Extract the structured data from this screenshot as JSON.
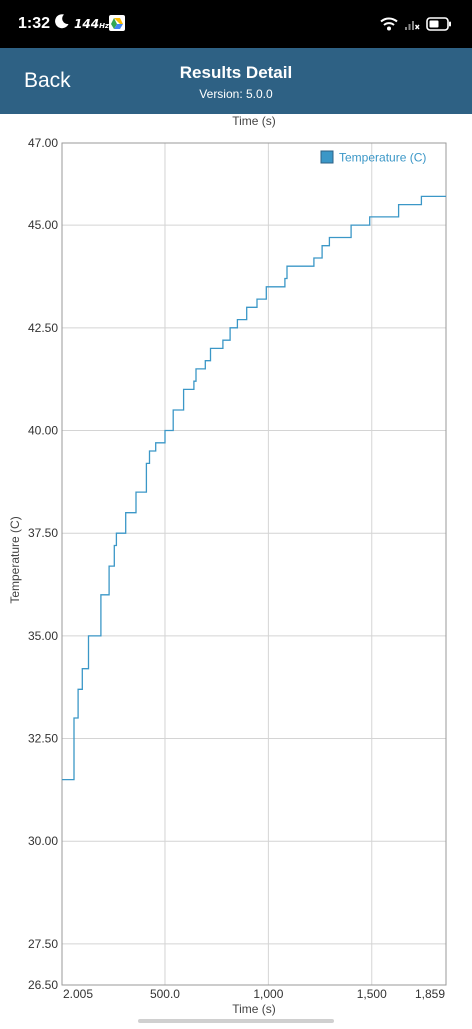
{
  "status_bar": {
    "time": "1:32",
    "refresh_rate": "144",
    "refresh_unit": "Hz",
    "icons": [
      "moon-icon",
      "google-drive-icon",
      "wifi-icon",
      "signal-icon",
      "battery-icon"
    ]
  },
  "header": {
    "back_label": "Back",
    "title": "Results Detail",
    "subtitle": "Version: 5.0.0",
    "background": "#2e6184"
  },
  "chart_data": {
    "type": "line",
    "title": "",
    "xlabel": "Time (s)",
    "ylabel": "Temperature (C)",
    "xlim": [
      2.005,
      1859
    ],
    "ylim": [
      26.5,
      47.0
    ],
    "grid": true,
    "legend_position": "top-right",
    "x_tick_labels": [
      {
        "value": 2.005,
        "label": "2.005"
      },
      {
        "value": 500,
        "label": "500.0"
      },
      {
        "value": 1000,
        "label": "1,000"
      },
      {
        "value": 1500,
        "label": "1,500"
      },
      {
        "value": 1859,
        "label": "1,859"
      }
    ],
    "y_tick_labels": [
      {
        "value": 47.0,
        "label": "47.00"
      },
      {
        "value": 45.0,
        "label": "45.00"
      },
      {
        "value": 42.5,
        "label": "42.50"
      },
      {
        "value": 40.0,
        "label": "40.00"
      },
      {
        "value": 37.5,
        "label": "37.50"
      },
      {
        "value": 35.0,
        "label": "35.00"
      },
      {
        "value": 32.5,
        "label": "32.50"
      },
      {
        "value": 30.0,
        "label": "30.00"
      },
      {
        "value": 27.5,
        "label": "27.50"
      },
      {
        "value": 26.5,
        "label": "26.50"
      }
    ],
    "series": [
      {
        "name": "Temperature (C)",
        "color": "#3b97c7",
        "step": true,
        "points": [
          [
            2.005,
            31.5
          ],
          [
            60,
            31.5
          ],
          [
            60,
            33.0
          ],
          [
            80,
            33.0
          ],
          [
            80,
            33.7
          ],
          [
            100,
            33.7
          ],
          [
            100,
            34.2
          ],
          [
            130,
            34.2
          ],
          [
            130,
            35.0
          ],
          [
            190,
            35.0
          ],
          [
            190,
            36.0
          ],
          [
            230,
            36.0
          ],
          [
            230,
            36.7
          ],
          [
            255,
            36.7
          ],
          [
            255,
            37.2
          ],
          [
            265,
            37.2
          ],
          [
            265,
            37.5
          ],
          [
            310,
            37.5
          ],
          [
            310,
            38.0
          ],
          [
            360,
            38.0
          ],
          [
            360,
            38.5
          ],
          [
            410,
            38.5
          ],
          [
            410,
            39.2
          ],
          [
            425,
            39.2
          ],
          [
            425,
            39.5
          ],
          [
            455,
            39.5
          ],
          [
            455,
            39.7
          ],
          [
            500,
            39.7
          ],
          [
            500,
            40.0
          ],
          [
            540,
            40.0
          ],
          [
            540,
            40.5
          ],
          [
            590,
            40.5
          ],
          [
            590,
            41.0
          ],
          [
            640,
            41.0
          ],
          [
            640,
            41.2
          ],
          [
            650,
            41.2
          ],
          [
            650,
            41.5
          ],
          [
            695,
            41.5
          ],
          [
            695,
            41.7
          ],
          [
            720,
            41.7
          ],
          [
            720,
            42.0
          ],
          [
            780,
            42.0
          ],
          [
            780,
            42.2
          ],
          [
            815,
            42.2
          ],
          [
            815,
            42.5
          ],
          [
            850,
            42.5
          ],
          [
            850,
            42.7
          ],
          [
            895,
            42.7
          ],
          [
            895,
            43.0
          ],
          [
            945,
            43.0
          ],
          [
            945,
            43.2
          ],
          [
            990,
            43.2
          ],
          [
            990,
            43.5
          ],
          [
            1080,
            43.5
          ],
          [
            1080,
            43.7
          ],
          [
            1090,
            43.7
          ],
          [
            1090,
            44.0
          ],
          [
            1220,
            44.0
          ],
          [
            1220,
            44.2
          ],
          [
            1260,
            44.2
          ],
          [
            1260,
            44.5
          ],
          [
            1295,
            44.5
          ],
          [
            1295,
            44.7
          ],
          [
            1400,
            44.7
          ],
          [
            1400,
            45.0
          ],
          [
            1490,
            45.0
          ],
          [
            1490,
            45.2
          ],
          [
            1630,
            45.2
          ],
          [
            1630,
            45.5
          ],
          [
            1740,
            45.5
          ],
          [
            1740,
            45.7
          ],
          [
            1859,
            45.7
          ]
        ]
      }
    ]
  }
}
